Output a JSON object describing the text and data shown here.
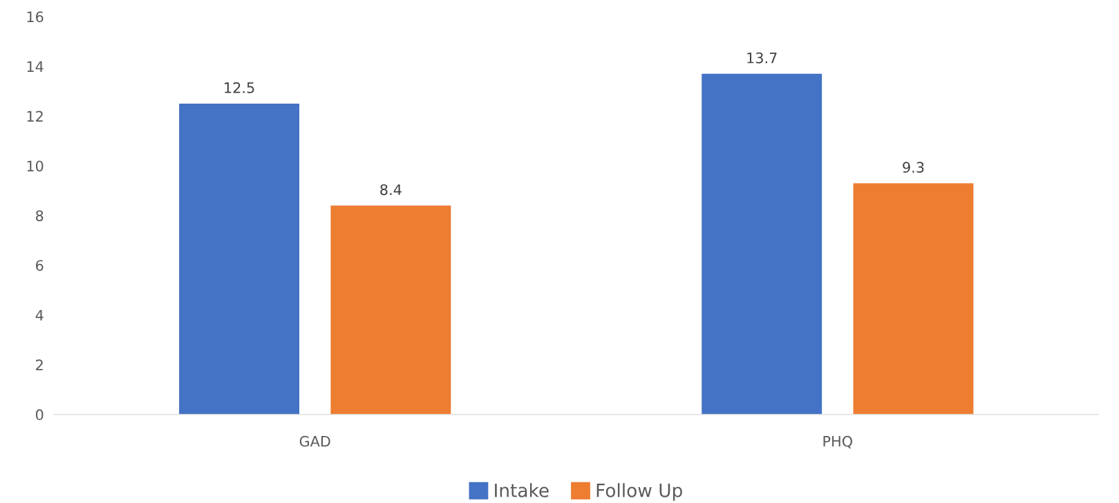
{
  "chart_data": {
    "type": "bar",
    "categories": [
      "GAD",
      "PHQ"
    ],
    "series": [
      {
        "name": "Intake",
        "color": "#4472c4",
        "values": [
          12.5,
          13.7
        ]
      },
      {
        "name": "Follow Up",
        "color": "#ed7d31",
        "values": [
          8.4,
          9.3
        ]
      }
    ],
    "ylim": [
      0,
      16
    ],
    "yticks": [
      0,
      2,
      4,
      6,
      8,
      10,
      12,
      14,
      16
    ],
    "grid": false,
    "legend": "bottom",
    "data_labels": true
  }
}
